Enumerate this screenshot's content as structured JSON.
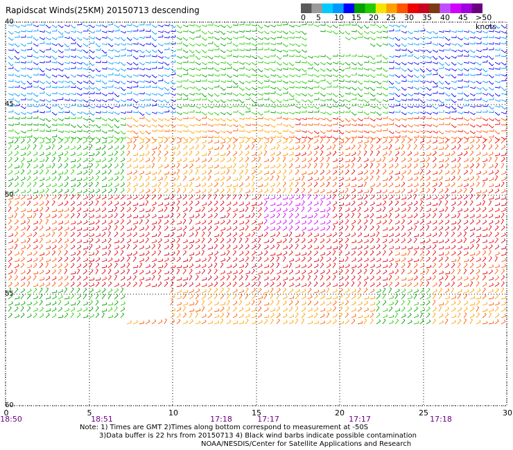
{
  "title": "Rapidscat Winds(25KM) 20150713 descending",
  "legend": {
    "labels": [
      "0",
      "5",
      "10",
      "15",
      "20",
      "25",
      "30",
      "35",
      "40",
      "45",
      ">50 knots"
    ],
    "colors": [
      "#5a5a5a",
      "#9a9a9a",
      "#00ccff",
      "#0099ff",
      "#0000ff",
      "#00a000",
      "#22cc00",
      "#f2e600",
      "#ffa000",
      "#ff5500",
      "#ee0000",
      "#cc0022",
      "#7a3b10",
      "#c050ff",
      "#d000ff",
      "#a000e0",
      "#6a0080"
    ]
  },
  "lat_labels": [
    "40",
    "45",
    "50",
    "55",
    "60"
  ],
  "lon_labels": [
    "0",
    "5",
    "10",
    "15",
    "20",
    "25",
    "30"
  ],
  "time_labels": [
    "18:50",
    "18:51",
    "17:18",
    "17:17",
    "17:17",
    "17:18"
  ],
  "notes": [
    "Note: 1) Times are GMT 2)Times along bottom correspond to measurement at -50S",
    "3)Data buffer is 22 hrs from 20150713 4) Black wind barbs indicate possible contamination",
    "NOAA/NESDIS/Center for Satellite Applications and Research"
  ]
}
